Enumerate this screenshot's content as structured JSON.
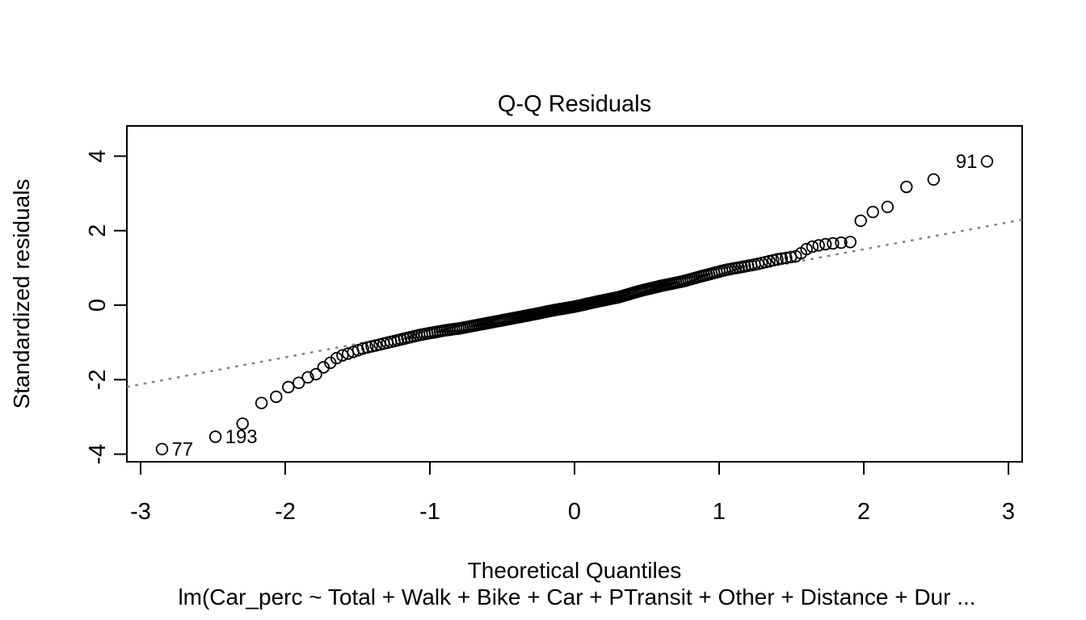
{
  "chart_data": {
    "type": "scatter",
    "variant": "qq-normal-plot",
    "title": "Q-Q Residuals",
    "xlabel": "Theoretical Quantiles",
    "ylabel": "Standardized residuals",
    "subtitle": "lm(Car_perc ~ Total + Walk + Bike + Car + PTransit + Other + Distance + Dur ...",
    "x_ticks": [
      -3,
      -2,
      -1,
      0,
      1,
      2,
      3
    ],
    "x_tick_labels": [
      "-3",
      "-2",
      "-1",
      "0",
      "1",
      "2",
      "3"
    ],
    "y_ticks": [
      -4,
      -2,
      0,
      2,
      4
    ],
    "y_tick_labels": [
      "-4",
      "-2",
      "0",
      "2",
      "4"
    ],
    "xlim": [
      -3.095,
      3.095
    ],
    "ylim": [
      -4.204,
      4.811
    ],
    "grid": false,
    "legend": false,
    "n_points": 230,
    "ppoints_offset": 0.5,
    "marker": "open-circle",
    "qq_curve_knots": [
      [
        -2.87,
        -3.88
      ],
      [
        -2.52,
        -3.57
      ],
      [
        -2.33,
        -3.38
      ],
      [
        -2.2,
        -2.64
      ],
      [
        -2.1,
        -2.6
      ],
      [
        -2.0,
        -2.22
      ],
      [
        -1.93,
        -2.15
      ],
      [
        -1.86,
        -1.95
      ],
      [
        -1.8,
        -1.9
      ],
      [
        -1.74,
        -1.68
      ],
      [
        -1.7,
        -1.58
      ],
      [
        -1.63,
        -1.38
      ],
      [
        -1.55,
        -1.28
      ],
      [
        -1.45,
        -1.15
      ],
      [
        -1.35,
        -1.06
      ],
      [
        -1.2,
        -0.92
      ],
      [
        -1.07,
        -0.8
      ],
      [
        -0.9,
        -0.68
      ],
      [
        -0.79,
        -0.62
      ],
      [
        -0.6,
        -0.48
      ],
      [
        -0.45,
        -0.37
      ],
      [
        -0.3,
        -0.26
      ],
      [
        -0.15,
        -0.14
      ],
      [
        0.0,
        -0.04
      ],
      [
        0.15,
        0.09
      ],
      [
        0.3,
        0.21
      ],
      [
        0.45,
        0.38
      ],
      [
        0.6,
        0.52
      ],
      [
        0.75,
        0.64
      ],
      [
        0.9,
        0.8
      ],
      [
        1.05,
        0.95
      ],
      [
        1.26,
        1.1
      ],
      [
        1.4,
        1.23
      ],
      [
        1.54,
        1.32
      ],
      [
        1.62,
        1.55
      ],
      [
        1.72,
        1.63
      ],
      [
        1.82,
        1.67
      ],
      [
        1.93,
        1.7
      ],
      [
        1.98,
        2.28
      ],
      [
        2.06,
        2.5
      ],
      [
        2.14,
        2.52
      ],
      [
        2.27,
        3.15
      ],
      [
        2.45,
        3.33
      ],
      [
        2.85,
        3.86
      ]
    ],
    "reference_line": {
      "style": "dotted",
      "intercept": 0.05,
      "slope": 0.725
    },
    "labeled_points": [
      {
        "index": 230,
        "label": "91",
        "x": 2.85,
        "y": 3.86,
        "side": "left"
      },
      {
        "index": 1,
        "label": "77",
        "x": -2.85,
        "y": -3.88,
        "side": "right"
      },
      {
        "index": 2,
        "label": "193",
        "x": -2.48,
        "y": -3.57,
        "side": "right"
      }
    ],
    "colors": {
      "background": "#ffffff",
      "point_stroke": "#000000",
      "reference_line": "#7f7f7f",
      "text": "#000000",
      "axis": "#000000"
    }
  }
}
